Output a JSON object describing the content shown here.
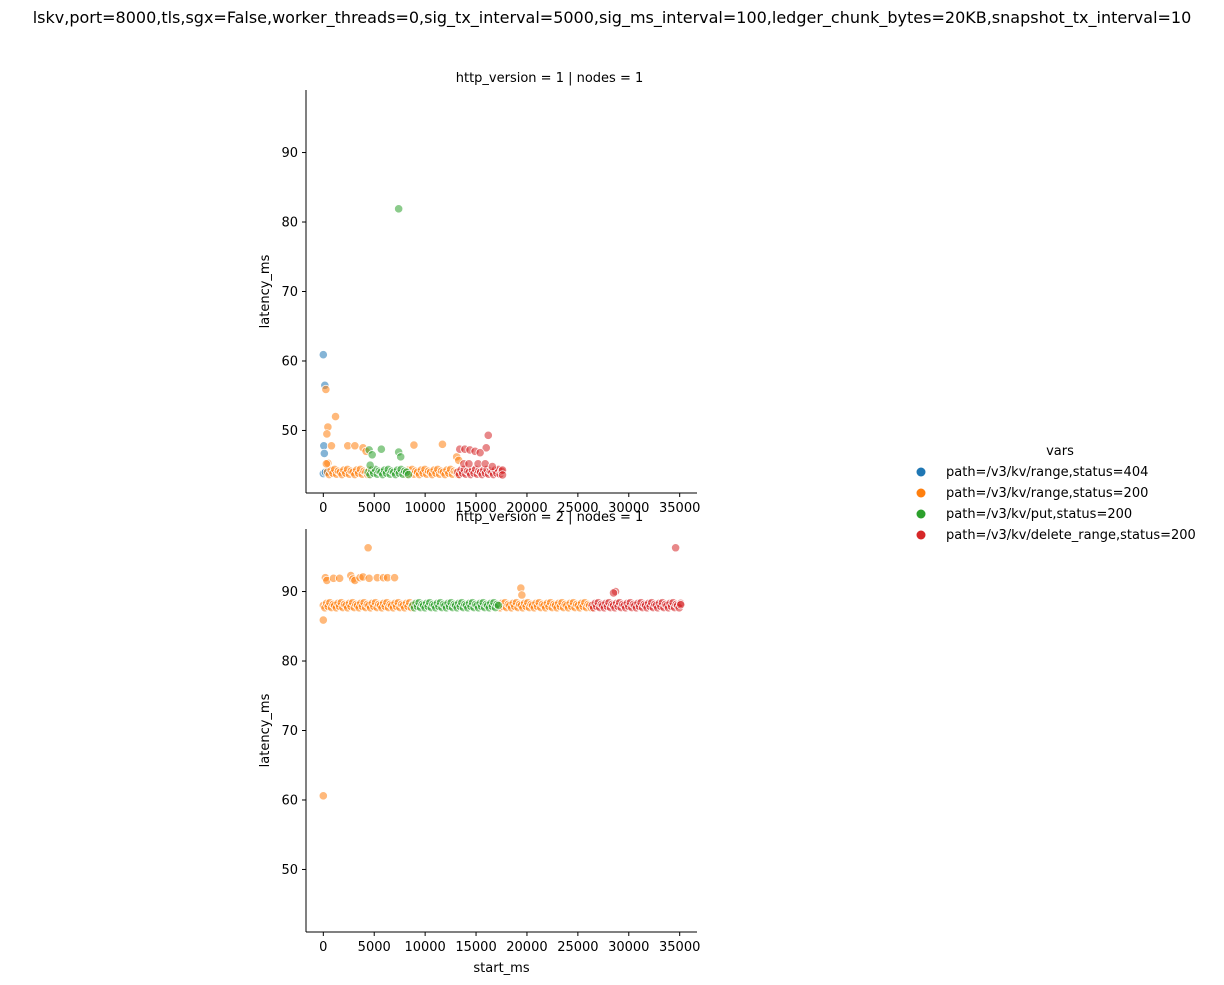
{
  "chart_data": {
    "type": "scatter",
    "suptitle": "lskv,port=8000,tls,sgx=False,worker_threads=0,sig_tx_interval=5000,sig_ms_interval=100,ledger_chunk_bytes=20KB,snapshot_tx_interval=10",
    "xlabel": "start_ms",
    "ylabel": "latency_ms",
    "xlim": [
      -1700,
      36700
    ],
    "ylim": [
      41,
      99
    ],
    "xticks": [
      0,
      5000,
      10000,
      15000,
      20000,
      25000,
      30000,
      35000
    ],
    "yticks": [
      50,
      60,
      70,
      80,
      90
    ],
    "grid": false,
    "legend": {
      "title": "vars",
      "placement": "center-right",
      "entries": [
        {
          "label": "path=/v3/kv/range,status=404",
          "color": "#1f77b4"
        },
        {
          "label": "path=/v3/kv/range,status=200",
          "color": "#ff7f0e"
        },
        {
          "label": "path=/v3/kv/put,status=200",
          "color": "#2ca02c"
        },
        {
          "label": "path=/v3/kv/delete_range,status=200",
          "color": "#d62728"
        }
      ]
    },
    "panels": [
      {
        "title": "http_version = 1 | nodes = 1",
        "series": [
          {
            "name": "path=/v3/kv/range,status=404",
            "color": "#1f77b4",
            "points": [
              [
                0,
                60.9
              ],
              [
                150,
                56.5
              ],
              [
                50,
                47.8
              ],
              [
                100,
                46.7
              ],
              [
                0,
                43.8
              ],
              [
                200,
                44.0
              ]
            ]
          },
          {
            "name": "path=/v3/kv/range,status=200",
            "color": "#ff7f0e",
            "points": [
              [
                250,
                55.9
              ],
              [
                1200,
                52.0
              ],
              [
                450,
                50.5
              ],
              [
                350,
                49.5
              ],
              [
                800,
                47.8
              ],
              [
                2400,
                47.8
              ],
              [
                3100,
                47.8
              ],
              [
                3900,
                47.5
              ],
              [
                4200,
                47.0
              ],
              [
                8900,
                47.9
              ],
              [
                11700,
                48.0
              ],
              [
                13100,
                46.2
              ],
              [
                13300,
                45.7
              ],
              [
                450,
                45.3
              ],
              [
                300,
                45.2
              ]
            ],
            "bands": [
              {
                "x_start": 400,
                "x_end": 4600,
                "y": 44.0,
                "step": 180
              },
              {
                "x_start": 8000,
                "x_end": 13300,
                "y": 44.0,
                "step": 180
              }
            ]
          },
          {
            "name": "path=/v3/kv/put,status=200",
            "color": "#2ca02c",
            "points": [
              [
                7400,
                81.9
              ],
              [
                4500,
                47.2
              ],
              [
                5700,
                47.3
              ],
              [
                4800,
                46.5
              ],
              [
                7400,
                46.9
              ],
              [
                7600,
                46.2
              ],
              [
                4600,
                45.0
              ]
            ],
            "bands": [
              {
                "x_start": 4400,
                "x_end": 8400,
                "y": 44.0,
                "step": 180
              }
            ]
          },
          {
            "name": "path=/v3/kv/delete_range,status=200",
            "color": "#d62728",
            "points": [
              [
                16200,
                49.3
              ],
              [
                16000,
                47.5
              ],
              [
                13400,
                47.3
              ],
              [
                13900,
                47.3
              ],
              [
                14400,
                47.2
              ],
              [
                14900,
                47.0
              ],
              [
                15400,
                46.8
              ],
              [
                13800,
                45.2
              ],
              [
                14300,
                45.2
              ],
              [
                15200,
                45.2
              ],
              [
                15900,
                45.2
              ],
              [
                16600,
                44.8
              ],
              [
                17600,
                44.3
              ],
              [
                17600,
                43.6
              ]
            ],
            "bands": [
              {
                "x_start": 13200,
                "x_end": 17600,
                "y": 44.0,
                "step": 160
              }
            ]
          }
        ]
      },
      {
        "title": "http_version = 2 | nodes = 1",
        "series": [
          {
            "name": "path=/v3/kv/range,status=404",
            "color": "#1f77b4",
            "points": []
          },
          {
            "name": "path=/v3/kv/range,status=200",
            "color": "#ff7f0e",
            "points": [
              [
                0,
                60.6
              ],
              [
                0,
                85.9
              ],
              [
                200,
                92.0
              ],
              [
                350,
                91.6
              ],
              [
                1000,
                91.9
              ],
              [
                1600,
                91.9
              ],
              [
                2700,
                92.3
              ],
              [
                2900,
                91.8
              ],
              [
                3100,
                91.6
              ],
              [
                3600,
                92.0
              ],
              [
                3900,
                92.1
              ],
              [
                4400,
                96.3
              ],
              [
                4500,
                91.9
              ],
              [
                5300,
                92.0
              ],
              [
                5900,
                92.0
              ],
              [
                6300,
                92.0
              ],
              [
                7000,
                92.0
              ],
              [
                19400,
                90.5
              ],
              [
                19500,
                89.5
              ]
            ],
            "bands": [
              {
                "x_start": 0,
                "x_end": 8800,
                "y": 88.0,
                "step": 160
              },
              {
                "x_start": 17200,
                "x_end": 26400,
                "y": 88.0,
                "step": 160
              }
            ]
          },
          {
            "name": "path=/v3/kv/put,status=200",
            "color": "#2ca02c",
            "points": [],
            "bands": [
              {
                "x_start": 8800,
                "x_end": 17200,
                "y": 88.0,
                "step": 150
              }
            ]
          },
          {
            "name": "path=/v3/kv/delete_range,status=200",
            "color": "#d62728",
            "points": [
              [
                28700,
                90.0
              ],
              [
                28500,
                89.8
              ],
              [
                34600,
                96.3
              ],
              [
                35100,
                88.1
              ]
            ],
            "bands": [
              {
                "x_start": 26400,
                "x_end": 35100,
                "y": 88.0,
                "step": 150
              }
            ]
          }
        ]
      }
    ]
  }
}
